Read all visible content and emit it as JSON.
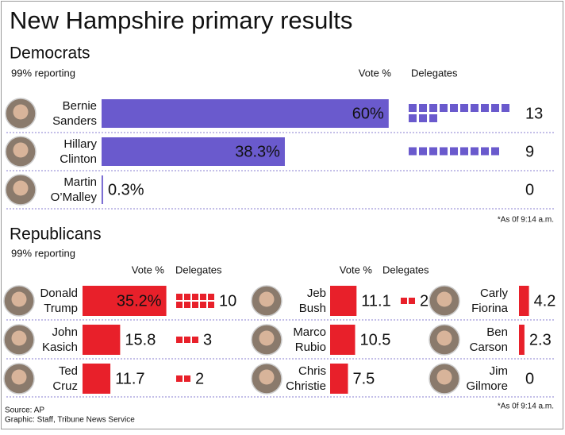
{
  "title": "New Hampshire primary results",
  "democrats": {
    "heading": "Democrats",
    "reporting": "99% reporting",
    "vote_header": "Vote %",
    "delegates_header": "Delegates",
    "candidates": [
      {
        "first": "Bernie",
        "last": "Sanders",
        "vote": 60,
        "vote_label": "60%",
        "delegates": 13
      },
      {
        "first": "Hillary",
        "last": "Clinton",
        "vote": 38.3,
        "vote_label": "38.3%",
        "delegates": 9
      },
      {
        "first": "Martin",
        "last": "O’Malley",
        "vote": 0.3,
        "vote_label": "0.3%",
        "delegates": 0
      }
    ],
    "note": "*As 0f 9:14 a.m."
  },
  "republicans": {
    "heading": "Republicans",
    "reporting": "99% reporting",
    "columns": [
      {
        "vote_header": "Vote %",
        "delegates_header": "Delegates",
        "candidates": [
          {
            "first": "Donald",
            "last": "Trump",
            "vote": 35.2,
            "vote_label": "35.2%",
            "delegates": 10
          },
          {
            "first": "John",
            "last": "Kasich",
            "vote": 15.8,
            "delegates": 3
          },
          {
            "first": "Ted",
            "last": "Cruz",
            "vote": 11.7,
            "delegates": 2
          }
        ]
      },
      {
        "vote_header": "Vote %",
        "delegates_header": "Delegates",
        "candidates": [
          {
            "first": "Jeb",
            "last": "Bush",
            "vote": 11.1,
            "delegates": 2
          },
          {
            "first": "Marco",
            "last": "Rubio",
            "vote": 10.5
          },
          {
            "first": "Chris",
            "last": "Christie",
            "vote": 7.5
          }
        ]
      },
      {
        "candidates": [
          {
            "first": "Carly",
            "last": "Fiorina",
            "vote": 4.2
          },
          {
            "first": "Ben",
            "last": "Carson",
            "vote": 2.3
          },
          {
            "first": "Jim",
            "last": "Gilmore",
            "vote": 0
          }
        ]
      }
    ],
    "note": "*As 0f 9:14 a.m."
  },
  "source": "Source: AP",
  "credit": "Graphic: Staff, Tribune News Service"
}
